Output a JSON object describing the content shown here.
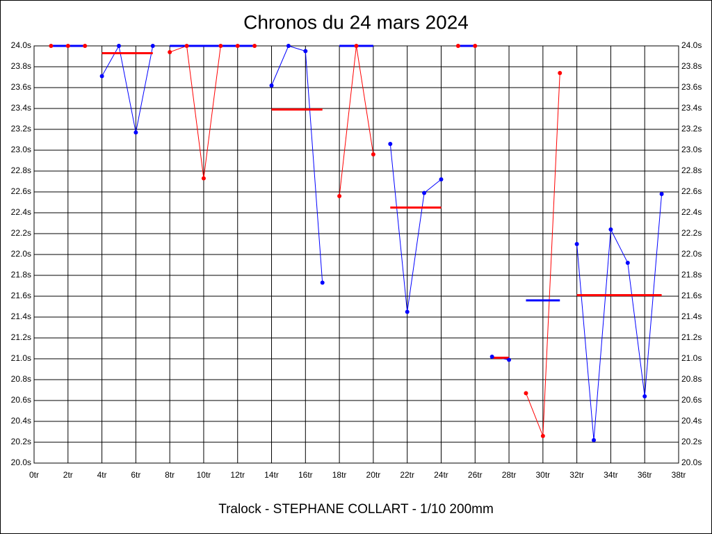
{
  "chart_data": {
    "type": "line",
    "title": "Chronos du 24 mars 2024",
    "xlabel": "Tralock - STEPHANE COLLART - 1/10 200mm",
    "xlim": [
      0,
      38
    ],
    "xticks": [
      {
        "value": 0,
        "label": "0tr"
      },
      {
        "value": 2,
        "label": "2tr"
      },
      {
        "value": 4,
        "label": "4tr"
      },
      {
        "value": 6,
        "label": "6tr"
      },
      {
        "value": 8,
        "label": "8tr"
      },
      {
        "value": 10,
        "label": "10tr"
      },
      {
        "value": 12,
        "label": "12tr"
      },
      {
        "value": 14,
        "label": "14tr"
      },
      {
        "value": 16,
        "label": "16tr"
      },
      {
        "value": 18,
        "label": "18tr"
      },
      {
        "value": 20,
        "label": "20tr"
      },
      {
        "value": 22,
        "label": "22tr"
      },
      {
        "value": 24,
        "label": "24tr"
      },
      {
        "value": 26,
        "label": "26tr"
      },
      {
        "value": 28,
        "label": "28tr"
      },
      {
        "value": 30,
        "label": "30tr"
      },
      {
        "value": 32,
        "label": "32tr"
      },
      {
        "value": 34,
        "label": "34tr"
      },
      {
        "value": 36,
        "label": "36tr"
      },
      {
        "value": 38,
        "label": "38tr"
      }
    ],
    "ylim": [
      20,
      24
    ],
    "yticks": [
      {
        "value": 20,
        "label": "20.0s"
      },
      {
        "value": 20.2,
        "label": "20.2s"
      },
      {
        "value": 20.4,
        "label": "20.4s"
      },
      {
        "value": 20.6,
        "label": "20.6s"
      },
      {
        "value": 20.8,
        "label": "20.8s"
      },
      {
        "value": 21,
        "label": "21.0s"
      },
      {
        "value": 21.2,
        "label": "21.2s"
      },
      {
        "value": 21.4,
        "label": "21.4s"
      },
      {
        "value": 21.6,
        "label": "21.6s"
      },
      {
        "value": 21.8,
        "label": "21.8s"
      },
      {
        "value": 22,
        "label": "22.0s"
      },
      {
        "value": 22.2,
        "label": "22.2s"
      },
      {
        "value": 22.4,
        "label": "22.4s"
      },
      {
        "value": 22.6,
        "label": "22.6s"
      },
      {
        "value": 22.8,
        "label": "22.8s"
      },
      {
        "value": 23,
        "label": "23.0s"
      },
      {
        "value": 23.2,
        "label": "23.2s"
      },
      {
        "value": 23.4,
        "label": "23.4s"
      },
      {
        "value": 23.6,
        "label": "23.6s"
      },
      {
        "value": 23.8,
        "label": "23.8s"
      },
      {
        "value": 24,
        "label": "24.0s"
      }
    ],
    "grid": true,
    "series": [
      {
        "color": "#ff0000",
        "x": [
          1,
          2,
          3
        ],
        "values": [
          24.0,
          24.0,
          24.0
        ],
        "mean": 24.0,
        "mean_color": "#0000ff"
      },
      {
        "color": "#0000ff",
        "x": [
          4,
          5,
          6,
          7
        ],
        "values": [
          23.71,
          24.0,
          23.17,
          24.0
        ],
        "mean": 23.93,
        "mean_color": "#ff0000"
      },
      {
        "color": "#ff0000",
        "x": [
          8,
          9,
          10,
          11,
          12,
          13
        ],
        "values": [
          23.94,
          24.0,
          22.73,
          24.0,
          24.0,
          24.0
        ],
        "mean": 24.0,
        "mean_color": "#0000ff"
      },
      {
        "color": "#0000ff",
        "x": [
          14,
          15,
          16,
          17
        ],
        "values": [
          23.62,
          24.0,
          23.95,
          21.73
        ],
        "mean": 23.39,
        "mean_color": "#ff0000"
      },
      {
        "color": "#ff0000",
        "x": [
          18,
          19,
          20
        ],
        "values": [
          22.56,
          24.0,
          22.96
        ],
        "mean": 24.0,
        "mean_color": "#0000ff"
      },
      {
        "color": "#0000ff",
        "x": [
          21,
          22,
          23,
          24
        ],
        "values": [
          23.06,
          21.45,
          22.59,
          22.72
        ],
        "mean": 22.45,
        "mean_color": "#ff0000"
      },
      {
        "color": "#ff0000",
        "x": [
          25,
          26
        ],
        "values": [
          24.0,
          24.0
        ],
        "mean": 24.0,
        "mean_color": "#0000ff"
      },
      {
        "color": "#0000ff",
        "x": [
          27,
          28
        ],
        "values": [
          21.02,
          20.99
        ],
        "mean": 21.01,
        "mean_color": "#ff0000"
      },
      {
        "color": "#ff0000",
        "x": [
          29,
          30,
          31
        ],
        "values": [
          20.67,
          20.26,
          23.74
        ],
        "mean": 21.56,
        "mean_color": "#0000ff"
      },
      {
        "color": "#0000ff",
        "x": [
          32,
          33,
          34,
          35,
          36,
          37
        ],
        "values": [
          22.1,
          20.22,
          22.24,
          21.92,
          20.64,
          22.58
        ],
        "mean": 21.61,
        "mean_color": "#ff0000"
      }
    ]
  }
}
